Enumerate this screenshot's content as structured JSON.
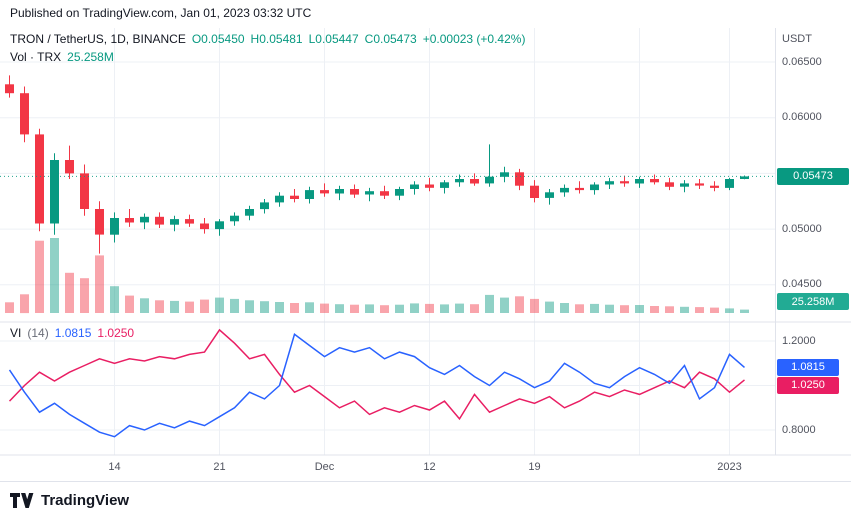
{
  "header": {
    "published_text": "Published on TradingView.com, Jan 01, 2023 03:32 UTC"
  },
  "branding": {
    "name": "TradingView"
  },
  "chart_data": {
    "type": "candlestick",
    "title": "TRON / TetherUS, 1D, BINANCE",
    "legend": {
      "ohlc": {
        "o": "O0.05450",
        "h": "H0.05481",
        "l": "L0.05447",
        "c": "C0.05473",
        "change": "+0.00023 (+0.42%)"
      },
      "volume_label": "Vol · TRX",
      "volume_value": "25.258M",
      "vi_label": "VI",
      "vi_params": "(14)",
      "vi_plus_value": "1.0815",
      "vi_minus_value": "1.0250"
    },
    "price_axis": {
      "unit": "USDT",
      "ticks": [
        "0.06500",
        "0.06000",
        "0.05000",
        "0.04500"
      ],
      "grid": [
        0.065,
        0.06,
        0.055,
        0.05,
        0.045
      ],
      "last_price": 0.05473,
      "last_price_label": "0.05473",
      "volume_badge_label": "25.258M"
    },
    "time_labels": [
      "14",
      "21",
      "Dec",
      "12",
      "19",
      "2023"
    ],
    "candles": [
      [
        0.063,
        0.0638,
        0.0618,
        0.0622,
        80
      ],
      [
        0.0622,
        0.0628,
        0.0578,
        0.0585,
        140
      ],
      [
        0.0585,
        0.059,
        0.0498,
        0.0505,
        540
      ],
      [
        0.0505,
        0.0568,
        0.0495,
        0.0562,
        560
      ],
      [
        0.0562,
        0.0575,
        0.0545,
        0.055,
        300
      ],
      [
        0.055,
        0.0558,
        0.0512,
        0.0518,
        260
      ],
      [
        0.0518,
        0.0525,
        0.0478,
        0.0495,
        430
      ],
      [
        0.0495,
        0.0515,
        0.0488,
        0.051,
        200
      ],
      [
        0.051,
        0.0518,
        0.0502,
        0.0506,
        130
      ],
      [
        0.0506,
        0.0514,
        0.05,
        0.0511,
        110
      ],
      [
        0.0511,
        0.0515,
        0.0501,
        0.0504,
        95
      ],
      [
        0.0504,
        0.0512,
        0.0498,
        0.0509,
        90
      ],
      [
        0.0509,
        0.0513,
        0.0502,
        0.0505,
        85
      ],
      [
        0.0505,
        0.051,
        0.0496,
        0.05,
        100
      ],
      [
        0.05,
        0.0509,
        0.0494,
        0.0507,
        115
      ],
      [
        0.0507,
        0.0515,
        0.0503,
        0.0512,
        105
      ],
      [
        0.0512,
        0.0521,
        0.0508,
        0.0518,
        95
      ],
      [
        0.0518,
        0.0527,
        0.0514,
        0.0524,
        88
      ],
      [
        0.0524,
        0.0533,
        0.052,
        0.053,
        82
      ],
      [
        0.053,
        0.0536,
        0.0524,
        0.0527,
        75
      ],
      [
        0.0527,
        0.0538,
        0.0523,
        0.0535,
        80
      ],
      [
        0.0535,
        0.0541,
        0.0529,
        0.0532,
        70
      ],
      [
        0.0532,
        0.0539,
        0.0526,
        0.0536,
        66
      ],
      [
        0.0536,
        0.054,
        0.0528,
        0.0531,
        62
      ],
      [
        0.0531,
        0.0537,
        0.0525,
        0.0534,
        64
      ],
      [
        0.0534,
        0.0539,
        0.0527,
        0.053,
        58
      ],
      [
        0.053,
        0.0538,
        0.0526,
        0.0536,
        62
      ],
      [
        0.0536,
        0.0543,
        0.0531,
        0.054,
        72
      ],
      [
        0.054,
        0.0546,
        0.0534,
        0.0537,
        68
      ],
      [
        0.0537,
        0.0544,
        0.0532,
        0.0542,
        64
      ],
      [
        0.0542,
        0.0549,
        0.0538,
        0.0545,
        70
      ],
      [
        0.0545,
        0.055,
        0.0539,
        0.0541,
        66
      ],
      [
        0.0541,
        0.0576,
        0.0538,
        0.0547,
        135
      ],
      [
        0.0547,
        0.0556,
        0.0542,
        0.0551,
        115
      ],
      [
        0.0551,
        0.0554,
        0.0535,
        0.0539,
        125
      ],
      [
        0.0539,
        0.0544,
        0.0524,
        0.0528,
        105
      ],
      [
        0.0528,
        0.0536,
        0.0522,
        0.0533,
        85
      ],
      [
        0.0533,
        0.054,
        0.0529,
        0.0537,
        75
      ],
      [
        0.0537,
        0.0543,
        0.0532,
        0.0535,
        65
      ],
      [
        0.0535,
        0.0542,
        0.0531,
        0.054,
        68
      ],
      [
        0.054,
        0.0546,
        0.0536,
        0.0543,
        62
      ],
      [
        0.0543,
        0.0548,
        0.0538,
        0.0541,
        58
      ],
      [
        0.0541,
        0.0547,
        0.0537,
        0.0545,
        60
      ],
      [
        0.0545,
        0.0549,
        0.054,
        0.0542,
        52
      ],
      [
        0.0542,
        0.0546,
        0.0535,
        0.0538,
        50
      ],
      [
        0.0538,
        0.0544,
        0.0533,
        0.0541,
        46
      ],
      [
        0.0541,
        0.0545,
        0.0536,
        0.0539,
        44
      ],
      [
        0.0539,
        0.0543,
        0.0534,
        0.0537,
        40
      ],
      [
        0.0537,
        0.0546,
        0.0535,
        0.0545,
        34
      ],
      [
        0.0545,
        0.05481,
        0.05447,
        0.05473,
        25.258
      ]
    ],
    "indicators": {
      "vortex": {
        "name": "VI (14)",
        "ticks": [
          "1.2000",
          "0.8000"
        ],
        "grid": [
          1.2,
          1.0,
          0.8
        ],
        "plus_badge": "1.0815",
        "minus_badge": "1.0250",
        "plus_values": [
          1.07,
          0.97,
          0.88,
          0.92,
          0.87,
          0.83,
          0.79,
          0.77,
          0.82,
          0.8,
          0.83,
          0.81,
          0.84,
          0.82,
          0.86,
          0.9,
          0.97,
          0.94,
          1.0,
          1.23,
          1.18,
          1.13,
          1.17,
          1.15,
          1.17,
          1.12,
          1.15,
          1.13,
          1.08,
          1.05,
          1.09,
          1.04,
          1.0,
          1.06,
          1.03,
          0.99,
          1.02,
          1.1,
          1.06,
          1.01,
          0.99,
          1.04,
          1.08,
          1.05,
          1.01,
          1.09,
          0.94,
          0.99,
          1.14,
          1.0815
        ],
        "minus_values": [
          0.93,
          1.0,
          1.06,
          1.02,
          1.06,
          1.09,
          1.12,
          1.1,
          1.12,
          1.11,
          1.13,
          1.12,
          1.14,
          1.15,
          1.25,
          1.19,
          1.12,
          1.14,
          1.05,
          0.97,
          1.0,
          0.95,
          0.9,
          0.93,
          0.87,
          0.9,
          0.88,
          0.91,
          0.89,
          0.93,
          0.85,
          0.96,
          0.88,
          0.91,
          0.94,
          0.92,
          0.95,
          0.9,
          0.93,
          0.97,
          0.95,
          0.98,
          0.96,
          0.99,
          1.02,
          0.99,
          1.06,
          1.03,
          0.97,
          1.025
        ]
      }
    },
    "colors": {
      "up": "#089981",
      "down": "#f23645",
      "volume_up": "rgba(8,153,129,0.45)",
      "volume_down": "rgba(242,54,69,0.45)",
      "vi_plus": "#2962ff",
      "vi_minus": "#e91e63",
      "price_badge_bg": "#089981",
      "volume_badge_bg": "#22ab94",
      "grid": "#edf0f5",
      "separator": "#e0e3eb"
    }
  }
}
